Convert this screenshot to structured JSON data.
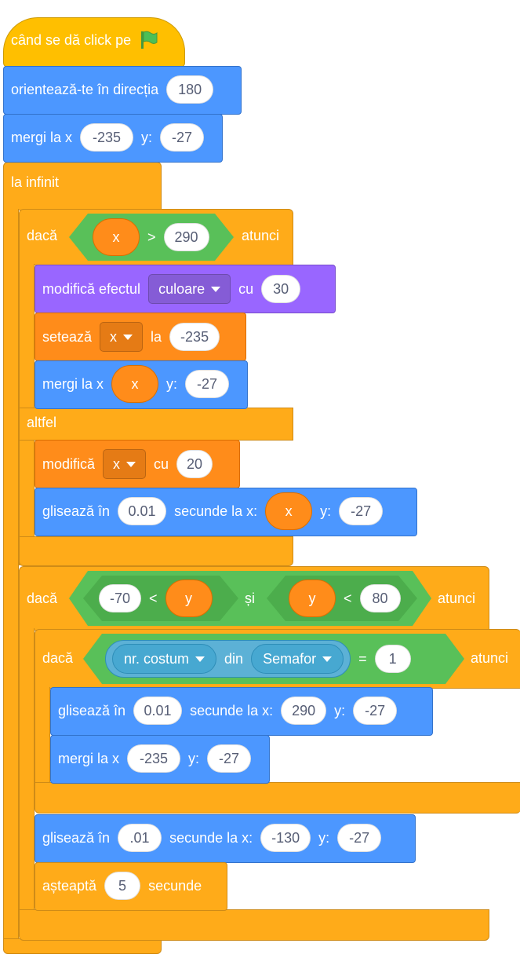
{
  "hat": {
    "label": "când se dă click pe",
    "icon": "green-flag-icon"
  },
  "point_direction": {
    "label": "orientează-te în direcția",
    "value": "180"
  },
  "goto1": {
    "label": "mergi la x",
    "x": "-235",
    "ylabel": "y:",
    "y": "-27"
  },
  "forever": {
    "label": "la infinit"
  },
  "if1": {
    "label": "dacă",
    "then": "atunci",
    "cond": {
      "var": "x",
      "op": ">",
      "value": "290"
    },
    "change_effect": {
      "label": "modifică efectul",
      "effect": "culoare",
      "cu": "cu",
      "value": "30"
    },
    "set_var": {
      "label": "setează",
      "var": "x",
      "la": "la",
      "value": "-235"
    },
    "goto": {
      "label": "mergi la x",
      "x": "x",
      "ylabel": "y:",
      "y": "-27"
    },
    "else": "altfel",
    "change_var": {
      "label": "modifică",
      "var": "x",
      "cu": "cu",
      "value": "20"
    },
    "glide": {
      "label": "glisează în",
      "secs": "0.01",
      "mid": "secunde la x:",
      "x": "x",
      "ylabel": "y:",
      "y": "-27"
    }
  },
  "if2": {
    "label": "dacă",
    "then": "atunci",
    "cond_left": {
      "a": "-70",
      "op": "<",
      "b": "y"
    },
    "and": "și",
    "cond_right": {
      "a": "y",
      "op": "<",
      "b": "80"
    },
    "inner_if": {
      "label": "dacă",
      "then": "atunci",
      "prop": "nr. costum",
      "of": "din",
      "sprite": "Semafor",
      "eq": "=",
      "value": "1",
      "glide": {
        "label": "glisează în",
        "secs": "0.01",
        "mid": "secunde la x:",
        "x": "290",
        "ylabel": "y:",
        "y": "-27"
      },
      "goto": {
        "label": "mergi la x",
        "x": "-235",
        "ylabel": "y:",
        "y": "-27"
      }
    },
    "glide": {
      "label": "glisează în",
      "secs": ".01",
      "mid": "secunde la x:",
      "x": "-130",
      "ylabel": "y:",
      "y": "-27"
    },
    "wait": {
      "label": "așteaptă",
      "value": "5",
      "unit": "secunde"
    }
  },
  "colors": {
    "events": "#FFBF00",
    "motion": "#4C97FF",
    "control": "#FFAB19",
    "looks": "#9966FF",
    "variables": "#FF8C1A",
    "operators": "#59C059",
    "sensing": "#5CB1D6"
  }
}
